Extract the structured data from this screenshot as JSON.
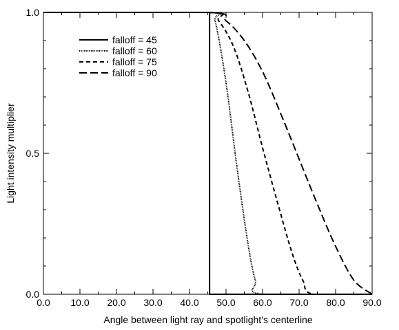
{
  "chart_data": {
    "type": "line",
    "title": "",
    "xlabel": "Angle between light ray and spotlight’s centerline",
    "ylabel": "Light intensity multiplier",
    "xlim": [
      0,
      90
    ],
    "ylim": [
      0,
      1
    ],
    "x_major_ticks": [
      0,
      10,
      20,
      30,
      40,
      50,
      60,
      70,
      80,
      90
    ],
    "x_tick_labels": [
      "0.0",
      "10.0",
      "20.0",
      "30.0",
      "40.0",
      "50.0",
      "60.0",
      "70.0",
      "80.0",
      "90.0"
    ],
    "y_major_ticks": [
      0,
      0.5,
      1.0
    ],
    "y_tick_labels": [
      "0.0",
      "0.5",
      "1.0"
    ],
    "grid": false,
    "legend_position": "top-left",
    "spot_cutoff_angle": 45,
    "series": [
      {
        "name": "falloff = 45",
        "falloff": 45,
        "dash": "solid",
        "x": [
          0,
          45,
          45.5,
          45.5,
          90
        ],
        "y": [
          1,
          1,
          1,
          0,
          0
        ]
      },
      {
        "name": "falloff = 60",
        "falloff": 60,
        "dash": "dotted",
        "x": [
          0,
          45,
          47,
          50,
          53,
          56,
          58,
          60,
          90
        ],
        "y": [
          1,
          1,
          0.97,
          0.75,
          0.45,
          0.18,
          0.05,
          0,
          0
        ]
      },
      {
        "name": "falloff = 75",
        "falloff": 75,
        "dash": "dashed",
        "x": [
          0,
          45,
          48,
          52,
          56,
          60,
          64,
          68,
          71,
          74,
          90
        ],
        "y": [
          1,
          1,
          0.97,
          0.88,
          0.72,
          0.52,
          0.33,
          0.15,
          0.05,
          0,
          0
        ]
      },
      {
        "name": "falloff = 90",
        "falloff": 90,
        "dash": "longdash",
        "x": [
          0,
          45,
          50,
          55,
          60,
          65,
          70,
          75,
          80,
          85,
          90
        ],
        "y": [
          1,
          1,
          0.97,
          0.9,
          0.79,
          0.64,
          0.48,
          0.32,
          0.17,
          0.05,
          0
        ]
      }
    ]
  }
}
